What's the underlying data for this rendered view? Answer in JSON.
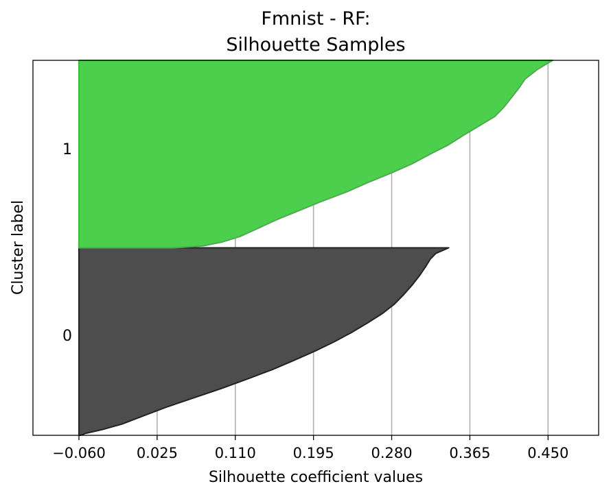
{
  "chart_data": {
    "type": "area",
    "title_lines": [
      "Fmnist - RF:",
      "Silhouette Samples"
    ],
    "xlabel": "Silhouette coefficient values",
    "ylabel": "Cluster label",
    "xlim": [
      -0.11,
      0.505
    ],
    "x_ticks": [
      -0.06,
      0.025,
      0.11,
      0.195,
      0.28,
      0.365,
      0.45
    ],
    "x_tick_labels": [
      "−0.060",
      "0.025",
      "0.110",
      "0.195",
      "0.280",
      "0.365",
      "0.450"
    ],
    "grid": "vertical",
    "clusters": [
      {
        "label": "0",
        "color": "#4d4d4d",
        "edge_color": "#222222",
        "sorted_silhouette_profile": [
          [
            0.0,
            -0.058
          ],
          [
            0.01,
            -0.053
          ],
          [
            0.03,
            -0.035
          ],
          [
            0.06,
            -0.013
          ],
          [
            0.1,
            0.008
          ],
          [
            0.15,
            0.035
          ],
          [
            0.2,
            0.065
          ],
          [
            0.25,
            0.095
          ],
          [
            0.3,
            0.123
          ],
          [
            0.35,
            0.15
          ],
          [
            0.4,
            0.174
          ],
          [
            0.45,
            0.197
          ],
          [
            0.5,
            0.218
          ],
          [
            0.55,
            0.237
          ],
          [
            0.6,
            0.254
          ],
          [
            0.65,
            0.27
          ],
          [
            0.7,
            0.283
          ],
          [
            0.75,
            0.293
          ],
          [
            0.8,
            0.302
          ],
          [
            0.85,
            0.31
          ],
          [
            0.9,
            0.317
          ],
          [
            0.94,
            0.322
          ],
          [
            0.97,
            0.328
          ],
          [
            1.0,
            0.342
          ]
        ]
      },
      {
        "label": "1",
        "color": "#4ccf4c",
        "edge_color": "#3aba3a",
        "sorted_silhouette_profile": [
          [
            0.0,
            0.043
          ],
          [
            0.01,
            0.075
          ],
          [
            0.03,
            0.095
          ],
          [
            0.06,
            0.115
          ],
          [
            0.1,
            0.133
          ],
          [
            0.15,
            0.155
          ],
          [
            0.2,
            0.18
          ],
          [
            0.25,
            0.205
          ],
          [
            0.3,
            0.232
          ],
          [
            0.35,
            0.255
          ],
          [
            0.4,
            0.28
          ],
          [
            0.45,
            0.303
          ],
          [
            0.5,
            0.322
          ],
          [
            0.55,
            0.342
          ],
          [
            0.6,
            0.358
          ],
          [
            0.65,
            0.375
          ],
          [
            0.7,
            0.392
          ],
          [
            0.75,
            0.402
          ],
          [
            0.8,
            0.41
          ],
          [
            0.85,
            0.418
          ],
          [
            0.9,
            0.425
          ],
          [
            0.95,
            0.438
          ],
          [
            0.98,
            0.448
          ],
          [
            1.0,
            0.455
          ]
        ]
      }
    ]
  }
}
